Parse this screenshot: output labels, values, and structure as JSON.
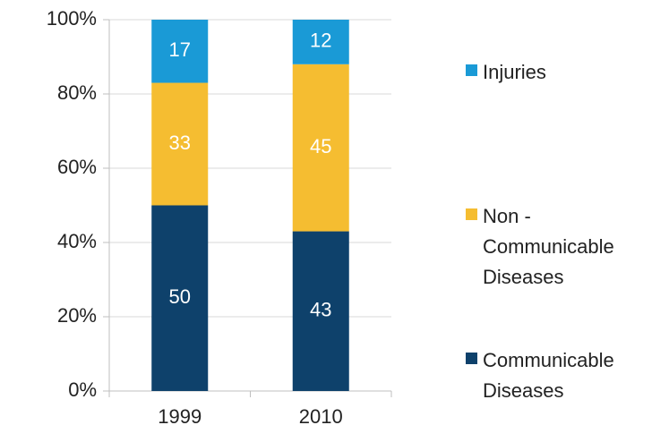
{
  "chart_data": {
    "type": "bar",
    "stacked": true,
    "categories": [
      "1999",
      "2010"
    ],
    "series": [
      {
        "name": "Communicable Diseases",
        "color": "#0e416b",
        "values": [
          50,
          43
        ]
      },
      {
        "name": "Non - Communicable Diseases",
        "color": "#f5bd31",
        "values": [
          33,
          45
        ]
      },
      {
        "name": "Injuries",
        "color": "#1a9ad6",
        "values": [
          17,
          12
        ]
      }
    ],
    "ylim": [
      0,
      100
    ],
    "yticks": [
      {
        "value": 0,
        "label": "0%"
      },
      {
        "value": 20,
        "label": "20%"
      },
      {
        "value": 40,
        "label": "40%"
      },
      {
        "value": 60,
        "label": "60%"
      },
      {
        "value": 80,
        "label": "80%"
      },
      {
        "value": 100,
        "label": "100%"
      }
    ],
    "grid": true,
    "legend": "right"
  }
}
